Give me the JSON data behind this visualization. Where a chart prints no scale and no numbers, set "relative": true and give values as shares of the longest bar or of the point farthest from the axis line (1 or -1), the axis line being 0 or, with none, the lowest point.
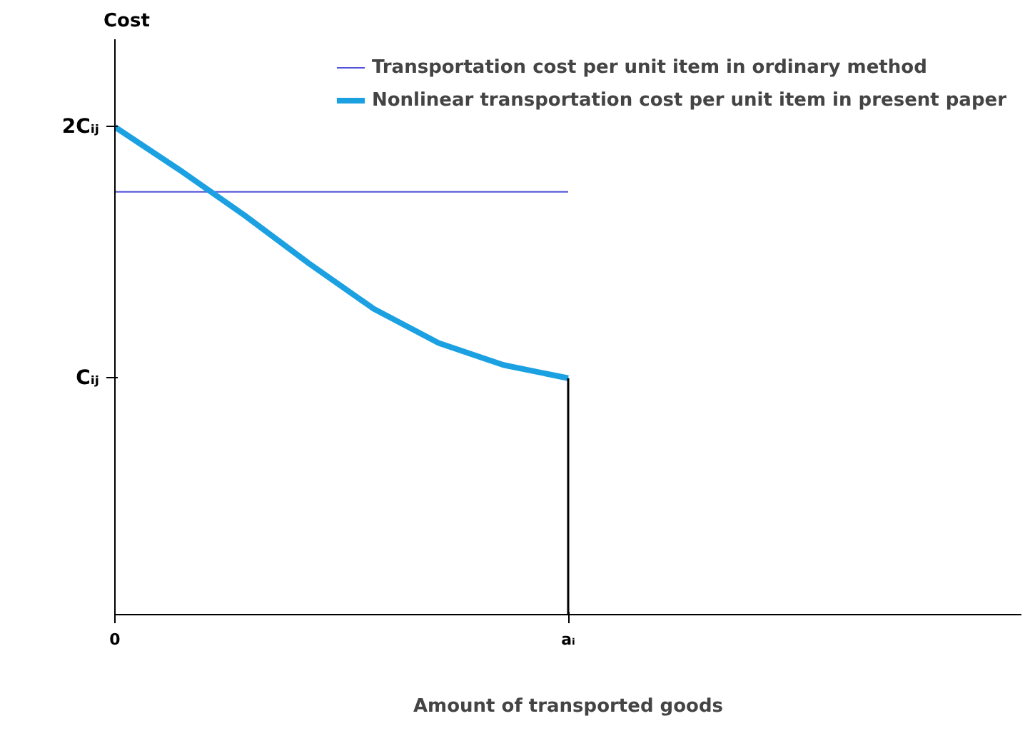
{
  "chart_data": {
    "type": "line",
    "relative": true,
    "xlabel": "Amount of transported goods",
    "categories": [
      null,
      null,
      null,
      null,
      null,
      null,
      null,
      null,
      null,
      null,
      null,
      null,
      null,
      null,
      null
    ],
    "legend": "top right",
    "marker": "none",
    "line_style": "solid",
    "annotations": [
      "0",
      "aᵢ",
      "Cᵢⱼ",
      "2Cᵢⱼ",
      "Cost"
    ],
    "series": [
      {
        "name": "Transportation cost per unit item in ordinary method",
        "color": "#5050d8",
        "values": [
          0.867,
          0.867,
          0.867,
          0.867,
          0.867,
          0.867,
          0.867,
          0.867,
          null,
          null,
          null,
          null,
          null,
          null,
          null
        ]
      },
      {
        "name": "Nonlinear transportation cost per unit item in present paper",
        "color": "#1ba1e2",
        "values": [
          1,
          0.912,
          0.819,
          0.72,
          0.627,
          0.557,
          0.512,
          0.485,
          null,
          null,
          null,
          null,
          null,
          null,
          null
        ]
      }
    ]
  }
}
